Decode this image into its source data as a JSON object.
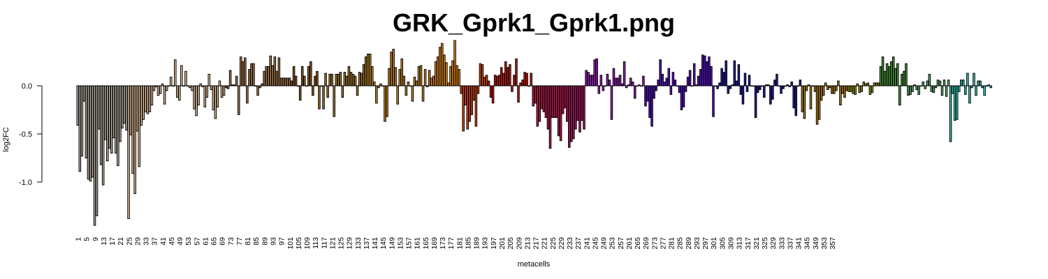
{
  "chart_data": {
    "type": "bar",
    "title": "GRK_Gprk1_Gprk1.png",
    "xlabel": "metacells",
    "ylabel": "log2FC",
    "yticks": [
      0.0,
      -0.5,
      -1.0
    ],
    "ytick_labels": [
      "0.0",
      "-0.5",
      "-1.0"
    ],
    "ylim": [
      -1.47,
      0.47
    ],
    "categories": [
      "1",
      "5",
      "9",
      "13",
      "17",
      "21",
      "25",
      "29",
      "33",
      "37",
      "41",
      "45",
      "49",
      "53",
      "57",
      "61",
      "65",
      "69",
      "73",
      "77",
      "81",
      "85",
      "89",
      "93",
      "97",
      "101",
      "105",
      "109",
      "113",
      "117",
      "121",
      "125",
      "129",
      "133",
      "137",
      "141",
      "145",
      "149",
      "153",
      "157",
      "161",
      "165",
      "169",
      "173",
      "177",
      "181",
      "185",
      "189",
      "193",
      "197",
      "201",
      "205",
      "209",
      "213",
      "217",
      "221",
      "225",
      "229",
      "233",
      "237",
      "241",
      "245",
      "249",
      "253",
      "257",
      "261",
      "265",
      "269",
      "273",
      "277",
      "281",
      "285",
      "289",
      "293",
      "297",
      "301",
      "305",
      "309",
      "313",
      "317",
      "321",
      "325",
      "329",
      "333",
      "337",
      "341",
      "345",
      "349",
      "353",
      "357"
    ],
    "groups": [
      {
        "color": "#B8B0A4",
        "values": [
          -0.41,
          -0.89,
          -0.73,
          -0.16,
          -0.75,
          -0.97,
          -0.99,
          -0.95,
          -1.45,
          -1.35,
          -0.45,
          -0.82,
          -1.03,
          -0.56,
          -0.78,
          -0.65,
          -0.7,
          -0.54,
          -0.7,
          -0.83,
          -0.58,
          -0.44,
          -0.39,
          -0.46
        ]
      },
      {
        "color": "#E2C09A",
        "values": [
          -1.38,
          -0.51,
          -0.91,
          -1.12,
          -0.47,
          -0.84,
          -0.41,
          -0.35,
          -0.27,
          -0.29,
          -0.27,
          -0.2,
          -0.05,
          -0.01,
          -0.1,
          -0.08,
          0.02,
          -0.19,
          -0.05,
          0.0,
          0.09,
          0.0,
          0.27,
          -0.12,
          -0.15,
          0.21,
          0.0,
          0.15,
          0.0,
          -0.02,
          -0.05,
          -0.24,
          -0.31,
          -0.2,
          0.02,
          -0.01,
          -0.22,
          -0.12,
          0.12,
          -0.04,
          -0.25,
          -0.34,
          -0.22,
          0.05,
          -0.12,
          -0.1
        ]
      },
      {
        "color": "#A97C4E",
        "values": [
          -0.02,
          -0.03,
          0.16,
          0.01,
          0.01,
          0.1,
          -0.3,
          0.3,
          0.25,
          0.29,
          -0.18,
          0.17,
          0.23,
          0.23,
          0.0,
          -0.1,
          -0.02,
          0.02,
          0.15,
          0.2,
          0.2,
          0.31,
          0.21,
          0.3,
          0.15,
          0.29,
          0.08,
          0.08,
          0.08,
          0.08,
          0.08
        ]
      },
      {
        "color": "#8E5A24",
        "values": [
          0.05,
          0.2,
          0.1,
          0.0,
          -0.15,
          0.2,
          0.1,
          0.0,
          0.2,
          0.25,
          -0.1,
          0.1,
          0.15
        ]
      },
      {
        "color": "#A67A32",
        "values": [
          -0.24,
          0.0,
          -0.24,
          0.13,
          -0.12,
          0.12,
          0.12,
          -0.32,
          0.12,
          0.12,
          0.14,
          -0.12,
          0.14,
          0.1,
          0.2,
          0.14,
          0.12,
          0.1,
          -0.1,
          0.14,
          0.13,
          0.22,
          0.3
        ]
      },
      {
        "color": "#C98A2A",
        "values": [
          0.33,
          0.33,
          0.2,
          0.04,
          -0.18,
          -0.02,
          0.02,
          0.0,
          -0.37,
          -0.32,
          0.18,
          0.35,
          0.38,
          0.19,
          -0.19,
          0.17,
          0.28,
          0.1,
          -0.1,
          0.04,
          0.0,
          -0.16,
          0.09,
          0.05,
          0.2,
          0.21,
          -0.16,
          0.17,
          -0.01,
          0.16
        ]
      },
      {
        "color": "#EA8B1E",
        "values": [
          0.08,
          0.1,
          0.25,
          0.3,
          0.4,
          0.44,
          0.32,
          0.24,
          0.03,
          0.2,
          0.26,
          0.47,
          0.21,
          0.17
        ]
      },
      {
        "color": "#DD4A12",
        "values": [
          -0.08,
          -0.47,
          -0.2,
          -0.45,
          -0.37,
          -0.3,
          -0.15,
          -0.42,
          -0.08,
          0.23,
          0.22,
          0.09,
          0.11
        ]
      },
      {
        "color": "#C81E14",
        "values": [
          0.05,
          -0.12,
          -0.18,
          0.11,
          0.1,
          0.11,
          0.19,
          0.13,
          0.25,
          0.19,
          0.22,
          -0.06,
          0.11,
          0.28,
          -0.17,
          0.03,
          0.06,
          0.14,
          0.13,
          0.0,
          0.13
        ]
      },
      {
        "color": "#C21C52",
        "values": [
          -0.21,
          -0.18,
          -0.42,
          -0.37,
          -0.24,
          -0.27,
          -0.33,
          -0.45,
          -0.65,
          -0.33,
          -0.33,
          -0.33,
          -0.52,
          -0.57,
          -0.29,
          -0.23,
          -0.37
        ]
      },
      {
        "color": "#B0186A",
        "values": [
          -0.64,
          -0.58,
          -0.55,
          -0.45,
          -0.36,
          -0.48,
          -0.36,
          -0.45
        ]
      },
      {
        "color": "#9C1FBF",
        "values": [
          0.16,
          0.14,
          0.11,
          0.11,
          0.27,
          0.28,
          -0.08,
          0.11,
          -0.05,
          0.0,
          0.12,
          0.06,
          -0.35,
          0.18,
          0.08,
          0.08,
          0.11,
          0.02,
          0.25,
          -0.02,
          0.01,
          0.08,
          0.04,
          -0.13,
          0.0,
          0.01,
          0.0,
          0.1
        ]
      },
      {
        "color": "#5A14C8",
        "values": [
          -0.21,
          -0.16,
          -0.33,
          -0.42,
          -0.13,
          -0.05,
          0.06,
          0.27,
          0.12,
          0.04,
          0.08,
          0.18,
          -0.09,
          0.14,
          0.06,
          0.0,
          -0.07,
          -0.25,
          -0.22,
          -0.06,
          0.09,
          0.16,
          0.0,
          0.23,
          0.01,
          0.1,
          0.17,
          0.32,
          0.31,
          0.25,
          0.3,
          0.2,
          -0.32,
          0.0
        ]
      },
      {
        "color": "#22209E",
        "values": [
          -0.03,
          0.03,
          0.18,
          0.14,
          0.26,
          -0.08,
          -0.03,
          0.01,
          0.26,
          0.05,
          0.22,
          -0.09,
          -0.19,
          0.13,
          -0.06,
          0.11,
          0.0,
          0.0,
          -0.33,
          -0.07,
          -0.04,
          0.0,
          -0.12,
          0.01,
          0.01,
          -0.19,
          -0.14,
          0.06,
          0.12,
          0.0,
          -0.08,
          -0.03,
          0.0,
          0.01,
          -0.01,
          0.04,
          -0.23,
          -0.31,
          0.0,
          0.06
        ]
      },
      {
        "color": "#B58018",
        "values": [
          -0.27,
          -0.34,
          -0.05,
          0.01,
          -0.24,
          0.0,
          -0.06,
          -0.4,
          -0.35,
          -0.15,
          -0.1,
          0.03,
          -0.04,
          -0.02,
          -0.08,
          -0.08,
          -0.05,
          0.05,
          -0.2,
          -0.08,
          -0.12,
          -0.05
        ]
      },
      {
        "color": "#9A9A16",
        "values": [
          -0.06,
          -0.06,
          -0.08,
          -0.09,
          0.02,
          -0.07,
          -0.06,
          0.04,
          0.02,
          0.03,
          -0.09,
          -0.07,
          0.03,
          0.03,
          0.03
        ]
      },
      {
        "color": "#4E9A3A",
        "values": [
          0.2,
          0.3,
          0.15,
          0.23,
          0.2,
          0.25,
          0.3,
          0.18,
          0.23,
          -0.2,
          0.12,
          0.15,
          0.23
        ]
      },
      {
        "color": "#5BAE6E",
        "values": [
          -0.1,
          -0.09,
          -0.06,
          0.01,
          -0.04,
          -0.09,
          0.0,
          0.04,
          -0.03,
          0.05,
          0.12,
          -0.06,
          -0.07,
          -0.02,
          0.06,
          0.05,
          -0.1,
          0.06,
          -0.11,
          0.06
        ]
      },
      {
        "color": "#3CC8B4",
        "values": [
          -0.58,
          -0.08,
          -0.36,
          -0.35,
          -0.06,
          0.06,
          0.06,
          -0.09,
          0.13,
          -0.18,
          -0.02,
          0.13,
          -0.1,
          0.05,
          0.05,
          -0.02
        ]
      },
      {
        "color": "#2DE0E8",
        "values": [
          -0.1,
          0.0,
          0.01,
          -0.02
        ]
      }
    ]
  }
}
